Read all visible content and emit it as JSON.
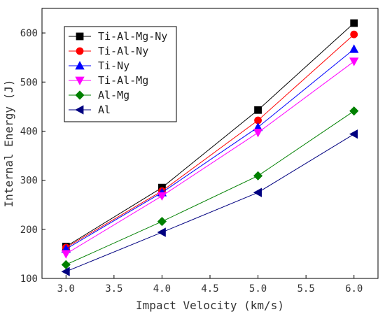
{
  "chart_data": {
    "type": "line",
    "title": "",
    "xlabel": "Impact Velocity (km/s)",
    "ylabel": "Internal Energy (J)",
    "xlim": [
      2.75,
      6.25
    ],
    "ylim": [
      100,
      650
    ],
    "x": [
      3.0,
      4.0,
      5.0,
      6.0
    ],
    "x_ticks": [
      3.0,
      3.5,
      4.0,
      4.5,
      5.0,
      5.5,
      6.0
    ],
    "x_tick_labels": [
      "3.0",
      "3.5",
      "4.0",
      "4.5",
      "5.0",
      "5.5",
      "6.0"
    ],
    "y_ticks": [
      100,
      200,
      300,
      400,
      500,
      600
    ],
    "y_tick_labels": [
      "100",
      "200",
      "300",
      "400",
      "500",
      "600"
    ],
    "grid": false,
    "legend_position": "top-left",
    "series": [
      {
        "name": "Ti-Al-Mg-Ny",
        "color": "#000000",
        "marker": "square",
        "values": [
          165,
          285,
          443,
          620
        ]
      },
      {
        "name": "Ti-Al-Ny",
        "color": "#ff0000",
        "marker": "circle",
        "values": [
          163,
          278,
          422,
          597
        ]
      },
      {
        "name": "Ti-Ny",
        "color": "#0000ff",
        "marker": "triangle-up",
        "values": [
          160,
          275,
          408,
          567
        ]
      },
      {
        "name": "Ti-Al-Mg",
        "color": "#ff00ff",
        "marker": "triangle-down",
        "values": [
          150,
          268,
          397,
          542
        ]
      },
      {
        "name": "Al-Mg",
        "color": "#008000",
        "marker": "diamond",
        "values": [
          128,
          216,
          309,
          441
        ]
      },
      {
        "name": "Al",
        "color": "#000080",
        "marker": "triangle-left",
        "values": [
          114,
          194,
          275,
          394
        ]
      }
    ]
  }
}
